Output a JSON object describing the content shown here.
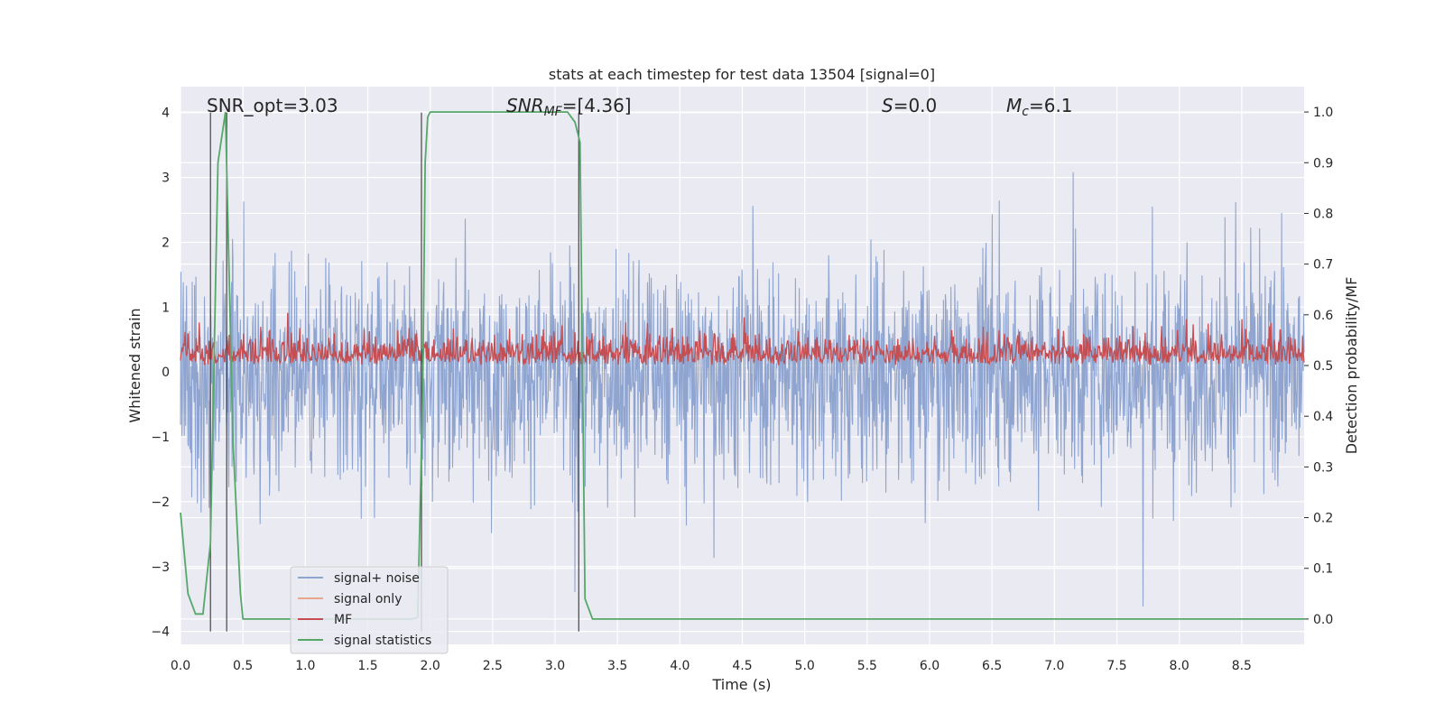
{
  "chart_data": {
    "type": "line",
    "title": "stats at each timestep for test data 13504 [signal=0]",
    "xlabel": "Time (s)",
    "ylabel": "Whitened strain",
    "y2label": "Detection probability/MF",
    "xlim": [
      0,
      9.0
    ],
    "ylim": [
      -4.2,
      4.4
    ],
    "y2lim": [
      -0.05,
      1.05
    ],
    "x_ticks": [
      "0.0",
      "0.5",
      "1.0",
      "1.5",
      "2.0",
      "2.5",
      "3.0",
      "3.5",
      "4.0",
      "4.5",
      "5.0",
      "5.5",
      "6.0",
      "6.5",
      "7.0",
      "7.5",
      "8.0",
      "8.5"
    ],
    "y_ticks": [
      "4",
      "3",
      "2",
      "1",
      "0",
      "−1",
      "−2",
      "−3",
      "−4"
    ],
    "y2_ticks": [
      "1.0",
      "0.9",
      "0.8",
      "0.7",
      "0.6",
      "0.5",
      "0.4",
      "0.3",
      "0.2",
      "0.1",
      "0.0"
    ],
    "grid": true,
    "legend_position": "lower-left",
    "annotations": {
      "snr_opt": "SNR_opt=3.03",
      "snr_mf_main": "SNR",
      "snr_mf_sub": "MF",
      "snr_mf_value": "=[4.36]",
      "s_main": "S",
      "s_value": "=0.0",
      "mc_main": "M",
      "mc_sub": "c",
      "mc_value": "=6.1"
    },
    "series": [
      {
        "name": "signal+ noise",
        "color": "#8fa5d0",
        "axis": "left",
        "style": "noise",
        "sample_rate": 2048,
        "range": [
          -3.9,
          4.0
        ]
      },
      {
        "name": "signal only",
        "color": "#e8a58a",
        "axis": "left",
        "values": []
      },
      {
        "name": "MF",
        "color": "#c44e52",
        "axis": "right",
        "style": "noise",
        "baseline": 0.5,
        "range": [
          0.5,
          0.64
        ]
      },
      {
        "name": "signal statistics",
        "color": "#55a868",
        "axis": "right",
        "x": [
          0.0,
          0.06,
          0.12,
          0.18,
          0.24,
          0.3,
          0.36,
          0.42,
          0.48,
          0.5,
          0.6,
          1.0,
          1.5,
          1.85,
          1.9,
          1.94,
          1.96,
          1.98,
          2.0,
          2.1,
          2.5,
          3.0,
          3.1,
          3.16,
          3.2,
          3.24,
          3.3,
          3.4,
          3.9,
          9.0
        ],
        "y": [
          0.21,
          0.05,
          0.01,
          0.01,
          0.15,
          0.9,
          1.0,
          0.35,
          0.05,
          0.0,
          0.0,
          0.0,
          0.0,
          0.0,
          0.003,
          0.45,
          0.9,
          0.99,
          1.0,
          1.0,
          1.0,
          1.0,
          1.0,
          0.98,
          0.94,
          0.04,
          0.0,
          0.0,
          0.0,
          0.0
        ]
      }
    ],
    "vlines": [
      0.24,
      0.37,
      1.93,
      3.19
    ]
  }
}
